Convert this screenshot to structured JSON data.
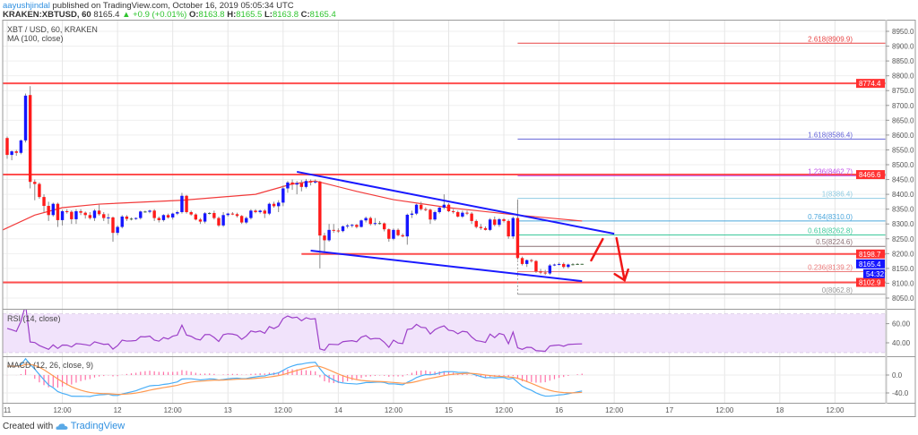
{
  "header": {
    "author": "aayushjindal",
    "published": " published on TradingView.com, October 16, 2019 05:05:34 UTC",
    "symbol": "KRAKEN:XBTUSD, 60",
    "last": "8165.4",
    "change": "+0.9 (+0.01%)",
    "o_label": "O:",
    "o": "8163.8",
    "h_label": "H:",
    "h": "8165.5",
    "l_label": "L:",
    "l": "8163.8",
    "c_label": "C:",
    "c": "8165.4",
    "up_icon": "triangle-up-icon"
  },
  "legend": {
    "title": "XBT / USD, 60, KRAKEN",
    "ma": "MA (100, close)",
    "rsi": "RSI (14, close)",
    "macd": "MACD (12, 26, close, 9)"
  },
  "footer": {
    "created": "Created with",
    "brand": "TradingView",
    "logo_icon": "tradingview-cloud-icon"
  },
  "colors": {
    "up": "#1515ff",
    "down": "#ff1a1a",
    "ma": "#f23a3a",
    "level": "#ff3030",
    "channel": "#1a1aff",
    "rsi": "#9c3fc8",
    "rsi_band": "#f1e3fb",
    "macd": "#49aef7",
    "signal": "#ff9a52",
    "hist": "#ff6fa6",
    "countdown": "#1515ff"
  },
  "chart_data": {
    "type": "candlestick",
    "interval": "60",
    "candles_start": "2019-10-11 00:00",
    "price_ticks": [
      "8950.0",
      "8900.0",
      "8850.0",
      "8800.0",
      "8750.0",
      "8700.0",
      "8650.0",
      "8600.0",
      "8550.0",
      "8500.0",
      "8450.0",
      "8400.0",
      "8350.0",
      "8300.0",
      "8250.0",
      "8200.0",
      "8150.0",
      "8100.0",
      "8050.0"
    ],
    "price_range": [
      8050,
      8950
    ],
    "time_ticks": [
      "11",
      "12:00",
      "12",
      "12:00",
      "13",
      "12:00",
      "14",
      "12:00",
      "15",
      "12:00",
      "16",
      "12:00",
      "17",
      "12:00",
      "18",
      "12:00"
    ],
    "rsi_ticks": [
      "60.00",
      "40.00"
    ],
    "macd_ticks": [
      "0.0",
      "-40.0"
    ],
    "candles": [
      [
        8590,
        8595,
        8520,
        8533
      ],
      [
        8533,
        8548,
        8515,
        8545
      ],
      [
        8545,
        8550,
        8530,
        8540
      ],
      [
        8540,
        8585,
        8535,
        8582
      ],
      [
        8582,
        8740,
        8575,
        8733
      ],
      [
        8735,
        8765,
        8420,
        8442
      ],
      [
        8442,
        8450,
        8380,
        8435
      ],
      [
        8435,
        8440,
        8385,
        8391
      ],
      [
        8391,
        8400,
        8340,
        8361
      ],
      [
        8361,
        8375,
        8310,
        8330
      ],
      [
        8330,
        8372,
        8325,
        8368
      ],
      [
        8368,
        8372,
        8290,
        8313
      ],
      [
        8313,
        8348,
        8295,
        8343
      ],
      [
        8343,
        8350,
        8335,
        8341
      ],
      [
        8341,
        8346,
        8300,
        8316
      ],
      [
        8316,
        8350,
        8300,
        8343
      ],
      [
        8343,
        8350,
        8330,
        8338
      ],
      [
        8338,
        8342,
        8318,
        8330
      ],
      [
        8330,
        8340,
        8315,
        8320
      ],
      [
        8320,
        8350,
        8310,
        8345
      ],
      [
        8345,
        8365,
        8328,
        8333
      ],
      [
        8333,
        8340,
        8310,
        8320
      ],
      [
        8320,
        8335,
        8300,
        8322
      ],
      [
        8322,
        8325,
        8240,
        8270
      ],
      [
        8270,
        8295,
        8262,
        8290
      ],
      [
        8290,
        8330,
        8285,
        8325
      ],
      [
        8325,
        8330,
        8310,
        8317
      ],
      [
        8317,
        8322,
        8312,
        8318
      ],
      [
        8318,
        8322,
        8314,
        8320
      ],
      [
        8320,
        8345,
        8315,
        8342
      ],
      [
        8342,
        8345,
        8338,
        8341
      ],
      [
        8341,
        8348,
        8336,
        8345
      ],
      [
        8345,
        8350,
        8310,
        8320
      ],
      [
        8320,
        8325,
        8305,
        8313
      ],
      [
        8313,
        8333,
        8308,
        8330
      ],
      [
        8330,
        8335,
        8318,
        8322
      ],
      [
        8322,
        8338,
        8315,
        8335
      ],
      [
        8335,
        8345,
        8330,
        8340
      ],
      [
        8340,
        8405,
        8335,
        8395
      ],
      [
        8395,
        8398,
        8335,
        8340
      ],
      [
        8340,
        8345,
        8328,
        8332
      ],
      [
        8332,
        8336,
        8312,
        8315
      ],
      [
        8315,
        8320,
        8300,
        8308
      ],
      [
        8308,
        8340,
        8302,
        8336
      ],
      [
        8336,
        8340,
        8332,
        8337
      ],
      [
        8337,
        8345,
        8315,
        8320
      ],
      [
        8320,
        8325,
        8290,
        8295
      ],
      [
        8295,
        8340,
        8290,
        8330
      ],
      [
        8330,
        8338,
        8325,
        8335
      ],
      [
        8335,
        8340,
        8330,
        8333
      ],
      [
        8333,
        8338,
        8322,
        8327
      ],
      [
        8327,
        8330,
        8300,
        8305
      ],
      [
        8305,
        8325,
        8300,
        8320
      ],
      [
        8320,
        8350,
        8315,
        8345
      ],
      [
        8345,
        8350,
        8336,
        8340
      ],
      [
        8340,
        8348,
        8335,
        8345
      ],
      [
        8345,
        8350,
        8320,
        8335
      ],
      [
        8335,
        8372,
        8330,
        8368
      ],
      [
        8368,
        8375,
        8355,
        8360
      ],
      [
        8360,
        8380,
        8340,
        8372
      ],
      [
        8372,
        8430,
        8360,
        8420
      ],
      [
        8420,
        8445,
        8405,
        8440
      ],
      [
        8440,
        8450,
        8415,
        8433
      ],
      [
        8433,
        8445,
        8400,
        8438
      ],
      [
        8438,
        8448,
        8410,
        8425
      ],
      [
        8425,
        8452,
        8420,
        8445
      ],
      [
        8445,
        8450,
        8430,
        8440
      ],
      [
        8440,
        8450,
        8436,
        8443
      ],
      [
        8443,
        8446,
        8150,
        8261
      ],
      [
        8261,
        8270,
        8200,
        8245
      ],
      [
        8245,
        8300,
        8240,
        8280
      ],
      [
        8280,
        8300,
        8270,
        8278
      ],
      [
        8278,
        8285,
        8270,
        8276
      ],
      [
        8276,
        8295,
        8272,
        8292
      ],
      [
        8292,
        8300,
        8285,
        8295
      ],
      [
        8295,
        8300,
        8288,
        8297
      ],
      [
        8297,
        8300,
        8285,
        8290
      ],
      [
        8290,
        8315,
        8288,
        8312
      ],
      [
        8312,
        8325,
        8305,
        8320
      ],
      [
        8320,
        8325,
        8295,
        8300
      ],
      [
        8300,
        8320,
        8295,
        8303
      ],
      [
        8303,
        8310,
        8298,
        8302
      ],
      [
        8302,
        8305,
        8275,
        8282
      ],
      [
        8282,
        8285,
        8240,
        8250
      ],
      [
        8250,
        8285,
        8245,
        8280
      ],
      [
        8280,
        8285,
        8258,
        8262
      ],
      [
        8262,
        8268,
        8255,
        8258
      ],
      [
        8258,
        8335,
        8230,
        8331
      ],
      [
        8331,
        8345,
        8320,
        8335
      ],
      [
        8335,
        8368,
        8330,
        8365
      ],
      [
        8365,
        8375,
        8345,
        8350
      ],
      [
        8350,
        8356,
        8343,
        8348
      ],
      [
        8348,
        8352,
        8300,
        8315
      ],
      [
        8315,
        8345,
        8310,
        8340
      ],
      [
        8340,
        8358,
        8335,
        8355
      ],
      [
        8355,
        8400,
        8350,
        8365
      ],
      [
        8365,
        8370,
        8340,
        8343
      ],
      [
        8343,
        8350,
        8335,
        8340
      ],
      [
        8340,
        8345,
        8322,
        8325
      ],
      [
        8325,
        8345,
        8320,
        8338
      ],
      [
        8338,
        8345,
        8330,
        8335
      ],
      [
        8335,
        8340,
        8300,
        8310
      ],
      [
        8310,
        8315,
        8285,
        8290
      ],
      [
        8290,
        8300,
        8280,
        8286
      ],
      [
        8286,
        8292,
        8278,
        8280
      ],
      [
        8280,
        8320,
        8276,
        8315
      ],
      [
        8315,
        8325,
        8292,
        8297
      ],
      [
        8297,
        8320,
        8290,
        8316
      ],
      [
        8316,
        8320,
        8305,
        8310
      ],
      [
        8310,
        8315,
        8250,
        8258
      ],
      [
        8258,
        8325,
        8250,
        8320
      ],
      [
        8320,
        8380,
        8180,
        8185
      ],
      [
        8185,
        8190,
        8160,
        8165
      ],
      [
        8165,
        8180,
        8155,
        8178
      ],
      [
        8178,
        8182,
        8170,
        8175
      ],
      [
        8175,
        8178,
        8135,
        8140
      ],
      [
        8140,
        8148,
        8130,
        8136
      ],
      [
        8136,
        8145,
        8128,
        8133
      ],
      [
        8133,
        8165,
        8128,
        8160
      ],
      [
        8160,
        8166,
        8158,
        8163
      ],
      [
        8163,
        8170,
        8160,
        8165
      ],
      [
        8165,
        8170,
        8150,
        8155
      ],
      [
        8155,
        8166,
        8150,
        8163
      ],
      [
        8163,
        8168,
        8160,
        8164
      ],
      [
        8164,
        8168,
        8162,
        8165
      ],
      [
        8163.8,
        8165.5,
        8163.8,
        8165.4
      ]
    ],
    "ma100": [
      [
        "2019-10-10 22:30",
        8276
      ],
      [
        "2019-10-11 06:00",
        8330
      ],
      [
        "2019-10-11 12:00",
        8355
      ],
      [
        "2019-10-11 20:00",
        8367
      ],
      [
        "2019-10-12 14:00",
        8380
      ],
      [
        "2019-10-13 06:00",
        8400
      ],
      [
        "2019-10-13 14:00",
        8435
      ],
      [
        "2019-10-13 19:00",
        8445
      ],
      [
        "2019-10-14 04:00",
        8410
      ],
      [
        "2019-10-14 12:00",
        8382
      ],
      [
        "2019-10-15 00:00",
        8355
      ],
      [
        "2019-10-15 15:00",
        8330
      ],
      [
        "2019-10-16 05:00",
        8310
      ]
    ],
    "levels": [
      {
        "price": 8774.4,
        "label": "8774.4",
        "from": null
      },
      {
        "price": 8466.6,
        "label": "8466.6",
        "from": null
      },
      {
        "price": 8198.7,
        "label": "8198.7",
        "from": "2019-10-13 16:00"
      },
      {
        "price": 8102.9,
        "label": "8102.9",
        "from": null
      }
    ],
    "last_price_tag": {
      "label": "8165.4",
      "countdown": "54:32"
    },
    "fib_anchor": "2019-10-15 15:00",
    "fib": [
      {
        "ratio": "2.618",
        "price": 8909.9,
        "label": "2.618(8909.9)",
        "color": "#e84545"
      },
      {
        "ratio": "1.618",
        "price": 8586.4,
        "label": "1.618(8586.4)",
        "color": "#6464d8"
      },
      {
        "ratio": "1.236",
        "price": 8462.7,
        "label": "1.236(8462.7)",
        "color": "#c050e8"
      },
      {
        "ratio": "1",
        "price": 8386.4,
        "label": "1(8386.4)",
        "color": "#8fcbe2"
      },
      {
        "ratio": "0.764",
        "price": 8310.0,
        "label": "0.764(8310.0)",
        "color": "#4aa6dc"
      },
      {
        "ratio": "0.618",
        "price": 8262.8,
        "label": "0.618(8262.8)",
        "color": "#3cc89a"
      },
      {
        "ratio": "0.5",
        "price": 8224.6,
        "label": "0.5(8224.6)",
        "color": "#8c7075"
      },
      {
        "ratio": "0.236",
        "price": 8139.2,
        "label": "0.236(8139.2)",
        "color": "#ec7b7b"
      },
      {
        "ratio": "0",
        "price": 8062.8,
        "label": "0(8062.8)",
        "color": "#999999"
      }
    ],
    "trendlines": [
      {
        "name": "channel-upper",
        "p1": [
          "2019-10-13 15:00",
          8476
        ],
        "p2": [
          "2019-10-16 12:00",
          8267
        ]
      },
      {
        "name": "channel-lower",
        "p1": [
          "2019-10-13 18:00",
          8210
        ],
        "p2": [
          "2019-10-16 05:00",
          8107
        ]
      }
    ],
    "arrows": [
      {
        "name": "bounce-stroke",
        "p1": [
          "2019-10-16 07:00",
          8177
        ],
        "p2": [
          "2019-10-16 09:30",
          8249
        ],
        "head": false
      },
      {
        "name": "decline-arrow",
        "p1": [
          "2019-10-16 12:30",
          8252
        ],
        "p2": [
          "2019-10-16 14:15",
          8110
        ],
        "head": true
      }
    ]
  }
}
